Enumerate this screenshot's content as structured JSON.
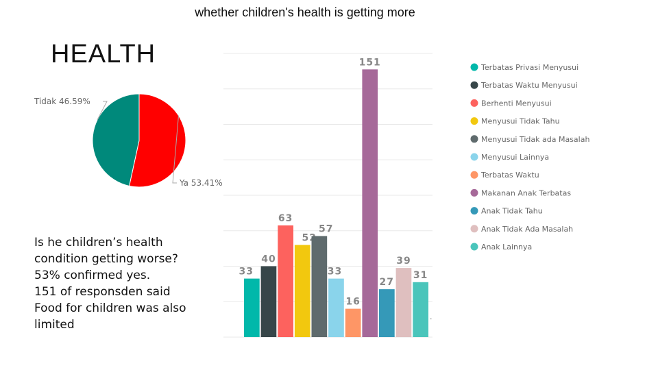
{
  "slide": {
    "title": "whether children's health is getting more",
    "heading": "HEALTH",
    "body_lines": [
      "Is he children’s health",
      "condition getting worse?",
      "53% confirmed yes.",
      "151 of responsden said",
      "Food for children was also",
      "limited"
    ],
    "trailing_mark": "."
  },
  "chart_data": [
    {
      "type": "pie",
      "title": "",
      "slices": [
        {
          "label": "Ya 53.41%",
          "value": 53.41,
          "color": "#ff0000"
        },
        {
          "label": "Tidak 46.59%",
          "value": 46.59,
          "color": "#00897b"
        }
      ]
    },
    {
      "type": "bar",
      "title": "",
      "xlabel": "",
      "ylabel": "",
      "ylim": [
        0,
        160
      ],
      "grid": true,
      "legend": "right",
      "categories": [
        "Terbatas Privasi Menyusui",
        "Terbatas Waktu Menyusui",
        "Berhenti Menyusui",
        "Menyusui Tidak Tahu",
        "Menyusui Tidak ada Masalah",
        "Menyusui Lainnya",
        "Terbatas Waktu",
        "Makanan Anak Terbatas",
        "Anak Tidak Tahu",
        "Anak Tidak Ada Masalah",
        "Anak Lainnya"
      ],
      "values": [
        33,
        40,
        63,
        52,
        57,
        33,
        16,
        151,
        27,
        39,
        31
      ],
      "colors": [
        "#01b8aa",
        "#374649",
        "#fd625e",
        "#f2c80f",
        "#5f6b6d",
        "#8ad4eb",
        "#fe9666",
        "#a66999",
        "#3599b8",
        "#dfbfbf",
        "#4ac5bb"
      ]
    }
  ]
}
